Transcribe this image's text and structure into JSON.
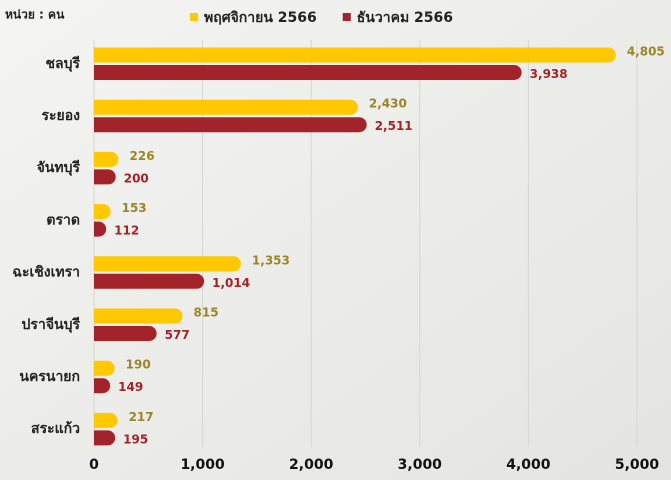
{
  "chart_data": {
    "type": "bar",
    "orientation": "horizontal",
    "unit_label": "หน่วย : คน",
    "categories": [
      "ชลบุรี",
      "ระยอง",
      "จันทบุรี",
      "ตราด",
      "ฉะเชิงเทรา",
      "ปราจีนบุรี",
      "นครนายก",
      "สระแก้ว"
    ],
    "series": [
      {
        "name": "พฤศจิกายน 2566",
        "color": "#ffc800",
        "label_color": "#9a8628",
        "values": [
          4805,
          2430,
          226,
          153,
          1353,
          815,
          190,
          217
        ],
        "value_labels": [
          "4,805",
          "2,430",
          "226",
          "153",
          "1,353",
          "815",
          "190",
          "217"
        ]
      },
      {
        "name": "ธันวาคม 2566",
        "color": "#a3232a",
        "label_color": "#a3232a",
        "values": [
          3938,
          2511,
          200,
          112,
          1014,
          577,
          149,
          195
        ],
        "value_labels": [
          "3,938",
          "2,511",
          "200",
          "112",
          "1,014",
          "577",
          "149",
          "195"
        ]
      }
    ],
    "xlim": [
      0,
      5000
    ],
    "xticks": [
      0,
      {
        "value": 1000,
        "label": "1,000"
      },
      {
        "value": 2000,
        "label": "2,000"
      },
      {
        "value": 3000,
        "label": "3,000"
      },
      {
        "value": 4000,
        "label": "4,000"
      },
      {
        "value": 5000,
        "label": "5,000"
      }
    ],
    "grid": true,
    "legend": "top"
  }
}
